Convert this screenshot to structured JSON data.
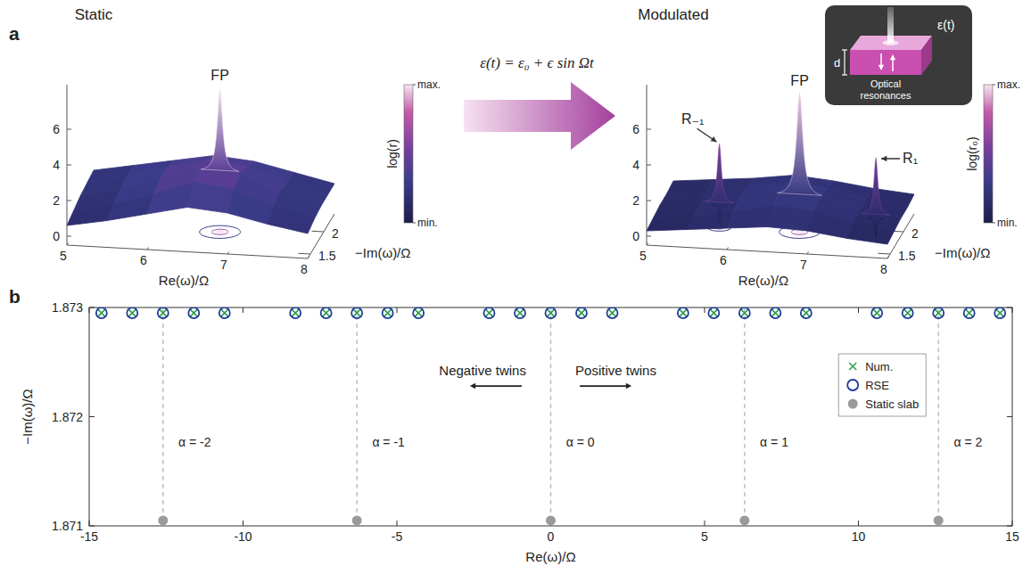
{
  "chart_data": [
    {
      "type": "surface",
      "panel": "a",
      "title": "Static",
      "xlabel": "Re(ω)/Ω",
      "ylabel": "−Im(ω)/Ω",
      "xlim": [
        5,
        8
      ],
      "ylim": [
        1.4,
        2.4
      ],
      "zlim": [
        -0.5,
        8.5
      ],
      "xticks": [
        5,
        6,
        7,
        8
      ],
      "yticks": [
        1.5,
        2
      ],
      "zticks": [
        0,
        2,
        4,
        6
      ],
      "x": [
        5,
        5.5,
        6,
        6.5,
        7,
        7.5,
        8
      ],
      "y": [
        1.4,
        1.65,
        1.9,
        2.15,
        2.4
      ],
      "z": [
        [
          0.6,
          1.0,
          1.5,
          2.0,
          1.8,
          1.3,
          0.9
        ],
        [
          0.8,
          1.3,
          2.0,
          2.8,
          2.5,
          1.7,
          1.1
        ],
        [
          1.0,
          1.5,
          2.3,
          3.2,
          2.8,
          1.9,
          1.2
        ],
        [
          1.1,
          1.6,
          2.2,
          2.8,
          2.5,
          1.8,
          1.2
        ],
        [
          1.2,
          1.6,
          2.0,
          2.4,
          2.2,
          1.7,
          1.2
        ]
      ],
      "peaks": [
        {
          "label": "FP",
          "x": 6.75,
          "y": 1.87,
          "z": 7.6
        }
      ],
      "colorbar": {
        "title": "log(r)",
        "range": [
          -0.5,
          7.6
        ],
        "ticks": [
          {
            "value": 7.6,
            "label": "max."
          },
          {
            "value": -0.5,
            "label": "min."
          }
        ]
      }
    },
    {
      "type": "surface",
      "title": "Modulated",
      "xlabel": "Re(ω)/Ω",
      "ylabel": "−Im(ω)/Ω",
      "xlim": [
        5,
        8
      ],
      "ylim": [
        1.4,
        2.4
      ],
      "zlim": [
        -0.5,
        8.5
      ],
      "xticks": [
        5,
        6,
        7,
        8
      ],
      "yticks": [
        1.5,
        2
      ],
      "zticks": [
        0,
        2,
        4,
        6
      ],
      "x": [
        5,
        5.5,
        6,
        6.5,
        7,
        7.5,
        8
      ],
      "y": [
        1.4,
        1.65,
        1.9,
        2.15,
        2.4
      ],
      "z": [
        [
          0.3,
          0.5,
          0.7,
          0.9,
          0.8,
          0.5,
          0.3
        ],
        [
          0.4,
          0.6,
          1.0,
          1.5,
          1.3,
          0.8,
          0.4
        ],
        [
          0.5,
          0.7,
          1.2,
          1.8,
          1.5,
          0.9,
          0.5
        ],
        [
          0.5,
          0.7,
          1.1,
          1.5,
          1.3,
          0.8,
          0.5
        ],
        [
          0.6,
          0.8,
          1.0,
          1.3,
          1.1,
          0.8,
          0.6
        ]
      ],
      "peaks": [
        {
          "label": "FP",
          "x": 6.75,
          "y": 1.87,
          "z": 7.3
        },
        {
          "label": "R₋₁",
          "x": 5.75,
          "y": 1.87,
          "z": 4.2
        },
        {
          "label": "R₁",
          "x": 7.7,
          "y": 1.87,
          "z": 3.9
        },
        {
          "label": null,
          "x": 5.78,
          "y": 1.8,
          "z": 0.0
        },
        {
          "label": null,
          "x": 7.72,
          "y": 1.8,
          "z": -0.4
        }
      ],
      "colorbar": {
        "title": "log(r₀)",
        "range": [
          -0.5,
          7.6
        ],
        "ticks": [
          {
            "value": 7.6,
            "label": "max."
          },
          {
            "value": -0.5,
            "label": "min."
          }
        ]
      }
    },
    {
      "type": "scatter",
      "panel": "b",
      "xlabel": "Re(ω)/Ω",
      "ylabel": "−Im(ω)/Ω",
      "xlim": [
        -15,
        15
      ],
      "ylim": [
        1.871,
        1.873
      ],
      "xticks": [
        -15,
        -10,
        -5,
        0,
        5,
        10,
        15
      ],
      "yticks": [
        1.871,
        1.872,
        1.873
      ],
      "legend": "right",
      "series": [
        {
          "name": "Num.",
          "color": "#2e9e4f",
          "marker": "cross",
          "x": [
            -14.6,
            -13.6,
            -12.6,
            -11.6,
            -10.6,
            -8.3,
            -7.3,
            -6.3,
            -5.3,
            -4.3,
            -2,
            -1,
            0,
            1,
            2,
            4.3,
            5.3,
            6.3,
            7.3,
            8.3,
            10.6,
            11.6,
            12.6,
            13.6,
            14.6
          ],
          "values": [
            1.87295,
            1.87295,
            1.87295,
            1.87295,
            1.87295,
            1.87295,
            1.87295,
            1.87295,
            1.87295,
            1.87295,
            1.87295,
            1.87295,
            1.87295,
            1.87295,
            1.87295,
            1.87295,
            1.87295,
            1.87295,
            1.87295,
            1.87295,
            1.87295,
            1.87295,
            1.87295,
            1.87295,
            1.87295
          ]
        },
        {
          "name": "RSE",
          "color": "#1f3c9a",
          "marker": "circle",
          "x": [
            -14.6,
            -13.6,
            -12.6,
            -11.6,
            -10.6,
            -8.3,
            -7.3,
            -6.3,
            -5.3,
            -4.3,
            -2,
            -1,
            0,
            1,
            2,
            4.3,
            5.3,
            6.3,
            7.3,
            8.3,
            10.6,
            11.6,
            12.6,
            13.6,
            14.6
          ],
          "values": [
            1.87295,
            1.87295,
            1.87295,
            1.87295,
            1.87295,
            1.87295,
            1.87295,
            1.87295,
            1.87295,
            1.87295,
            1.87295,
            1.87295,
            1.87295,
            1.87295,
            1.87295,
            1.87295,
            1.87295,
            1.87295,
            1.87295,
            1.87295,
            1.87295,
            1.87295,
            1.87295,
            1.87295,
            1.87295
          ]
        },
        {
          "name": "Static slab",
          "color": "#9a9a9a",
          "marker": "dot",
          "line_style": "dashed",
          "x": [
            -12.6,
            -6.3,
            0,
            6.3,
            12.6
          ],
          "values": [
            1.87105,
            1.87105,
            1.87105,
            1.87105,
            1.87105
          ]
        }
      ],
      "annotations": [
        {
          "text": "α = -2",
          "x": -12.1,
          "y": 1.87177
        },
        {
          "text": "α = -1",
          "x": -5.8,
          "y": 1.87177
        },
        {
          "text": "α = 0",
          "x": 0.5,
          "y": 1.87177
        },
        {
          "text": "α = 1",
          "x": 6.8,
          "y": 1.87177
        },
        {
          "text": "α = 2",
          "x": 13.1,
          "y": 1.87177
        },
        {
          "text": "Negative twins",
          "x": -0.8,
          "y": 1.87242,
          "arrow": "left"
        },
        {
          "text": "Positive twins",
          "x": 0.8,
          "y": 1.87242,
          "arrow": "right"
        }
      ]
    }
  ],
  "arrow_label": "ε(t) = ε₀ + ϵ sin Ωt",
  "inset": {
    "field": "ε(t)",
    "thickness": "d",
    "caption": "Optical resonances"
  }
}
